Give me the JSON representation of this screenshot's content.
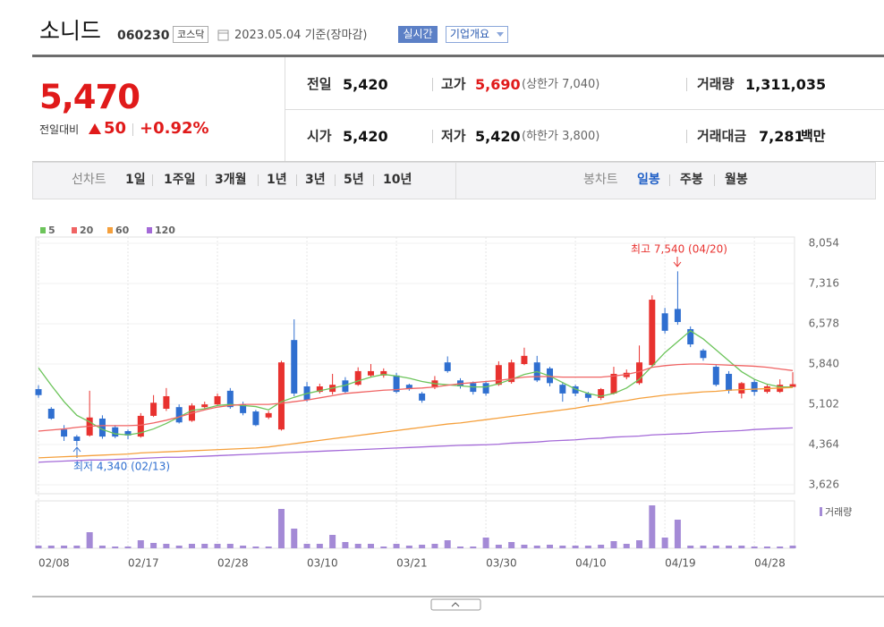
{
  "header": {
    "title": "소니드",
    "code": "060230",
    "market": "코스닥",
    "date": "2023.05.04 기준(장마감)",
    "buttons": [
      "실시간",
      "기업개요"
    ]
  },
  "price": {
    "current": "5,470",
    "change_label": "전일대비",
    "change": "50",
    "rate": "+0.92%"
  },
  "info": {
    "items": [
      {
        "label": "전일",
        "value": "5,420"
      },
      {
        "label": "고가",
        "value": "5,690",
        "note": "(상한가 7,040)"
      },
      {
        "label": "거래량",
        "value": "1,311,035"
      },
      {
        "label": "시가",
        "value": "5,420"
      },
      {
        "label": "저가",
        "value": "5,420",
        "note": "(하한가 3,800)"
      },
      {
        "label": "거래대금",
        "value": "7,281",
        "note": "백만"
      }
    ]
  },
  "tabs": {
    "line_label": "선차트",
    "periods": [
      "1일",
      "1주일",
      "3개월",
      "1년",
      "3년",
      "5년",
      "10년"
    ],
    "candle_label": "봉차트",
    "candle_periods": [
      "일봉",
      "주봉",
      "월봉"
    ]
  },
  "chart_data": [
    {
      "type": "candlestick",
      "categories": [
        "02/08",
        null,
        null,
        null,
        null,
        null,
        null,
        "02/17",
        null,
        null,
        null,
        null,
        null,
        null,
        "02/28",
        null,
        null,
        null,
        null,
        null,
        null,
        "03/10",
        null,
        null,
        null,
        null,
        null,
        null,
        "03/21",
        null,
        null,
        null,
        null,
        null,
        null,
        "03/30",
        null,
        null,
        null,
        null,
        null,
        null,
        "04/10",
        null,
        null,
        null,
        null,
        null,
        null,
        "04/19",
        null,
        null,
        null,
        null,
        null,
        null,
        "04/28",
        null,
        null,
        null
      ],
      "open": [
        5380,
        5020,
        4640,
        4510,
        4530,
        4840,
        4680,
        4610,
        4510,
        4890,
        5020,
        5050,
        4800,
        5050,
        5100,
        5350,
        5100,
        4970,
        4860,
        4640,
        6280,
        5430,
        5330,
        5330,
        5540,
        5460,
        5630,
        5630,
        5630,
        5460,
        5300,
        5410,
        5870,
        5540,
        5490,
        5490,
        5460,
        5510,
        5840,
        5870,
        5760,
        5460,
        5430,
        5300,
        5220,
        5300,
        5600,
        5490,
        5820,
        6770,
        6850,
        6480,
        6090,
        5790,
        5660,
        5300,
        5510,
        5330,
        5330,
        5420
      ],
      "high": [
        5450,
        5050,
        4720,
        4540,
        5350,
        4900,
        4720,
        4640,
        4940,
        5270,
        5400,
        5100,
        5120,
        5150,
        5300,
        5400,
        5150,
        5000,
        4980,
        5900,
        6660,
        5510,
        5480,
        5660,
        5600,
        5780,
        5840,
        5760,
        5680,
        5480,
        5330,
        5620,
        5980,
        5580,
        5520,
        5530,
        5890,
        5920,
        6140,
        5990,
        5790,
        5510,
        5460,
        5330,
        5400,
        5790,
        5740,
        6180,
        7100,
        6870,
        7540,
        6530,
        6120,
        5820,
        5710,
        5510,
        5560,
        5460,
        5560,
        5690
      ],
      "low": [
        5220,
        4820,
        4430,
        4340,
        4510,
        4470,
        4480,
        4460,
        4490,
        4870,
        4980,
        4750,
        4780,
        5020,
        5080,
        5020,
        4900,
        4700,
        4830,
        4620,
        5250,
        5150,
        5300,
        5280,
        5300,
        5440,
        5600,
        5590,
        5300,
        5350,
        5130,
        5380,
        5680,
        5390,
        5280,
        5260,
        5440,
        5480,
        5820,
        5510,
        5430,
        5150,
        5250,
        5150,
        5180,
        5280,
        5560,
        5460,
        5790,
        6400,
        6560,
        6150,
        5900,
        5430,
        5300,
        5210,
        5260,
        5300,
        5310,
        5420
      ],
      "close": [
        5270,
        4840,
        4510,
        4430,
        4860,
        4510,
        4510,
        4530,
        4890,
        5130,
        5250,
        4770,
        5080,
        5100,
        5250,
        5050,
        4940,
        4720,
        4940,
        5870,
        5300,
        5180,
        5430,
        5460,
        5330,
        5710,
        5710,
        5710,
        5330,
        5380,
        5170,
        5540,
        5710,
        5430,
        5330,
        5300,
        5820,
        5870,
        5990,
        5540,
        5490,
        5300,
        5300,
        5220,
        5380,
        5660,
        5680,
        5870,
        7020,
        6450,
        6610,
        6200,
        5950,
        5460,
        5350,
        5490,
        5330,
        5430,
        5460,
        5470
      ],
      "up_color": "#e8322f",
      "down_color": "#2f6fd0",
      "moving_averages": [
        {
          "name": "5",
          "color": "#6cc45a",
          "values": [
            5770,
            5450,
            5150,
            4900,
            4780,
            4640,
            4560,
            4540,
            4580,
            4650,
            4750,
            4870,
            4990,
            5020,
            5080,
            5100,
            5080,
            5060,
            5000,
            5150,
            5230,
            5300,
            5350,
            5400,
            5450,
            5530,
            5600,
            5650,
            5620,
            5580,
            5520,
            5480,
            5460,
            5440,
            5420,
            5420,
            5480,
            5560,
            5650,
            5700,
            5620,
            5500,
            5380,
            5300,
            5250,
            5300,
            5400,
            5560,
            5800,
            6050,
            6250,
            6450,
            6300,
            6100,
            5900,
            5700,
            5560,
            5470,
            5420,
            5420
          ]
        },
        {
          "name": "20",
          "color": "#f06464",
          "values": [
            4610,
            4630,
            4650,
            4680,
            4700,
            4710,
            4710,
            4710,
            4720,
            4760,
            4810,
            4870,
            4940,
            5000,
            5050,
            5080,
            5100,
            5100,
            5100,
            5120,
            5150,
            5180,
            5220,
            5260,
            5300,
            5320,
            5340,
            5360,
            5370,
            5390,
            5400,
            5420,
            5450,
            5480,
            5500,
            5520,
            5540,
            5570,
            5600,
            5610,
            5610,
            5600,
            5600,
            5600,
            5600,
            5620,
            5650,
            5700,
            5780,
            5810,
            5830,
            5840,
            5840,
            5830,
            5820,
            5810,
            5800,
            5780,
            5750,
            5720
          ]
        },
        {
          "name": "60",
          "color": "#f5a03c",
          "values": [
            4120,
            4130,
            4140,
            4150,
            4160,
            4170,
            4180,
            4190,
            4210,
            4220,
            4230,
            4240,
            4250,
            4260,
            4270,
            4280,
            4290,
            4300,
            4320,
            4350,
            4380,
            4410,
            4440,
            4470,
            4500,
            4530,
            4560,
            4590,
            4620,
            4650,
            4680,
            4710,
            4740,
            4760,
            4790,
            4820,
            4850,
            4880,
            4910,
            4940,
            4970,
            5000,
            5030,
            5070,
            5100,
            5140,
            5170,
            5210,
            5240,
            5270,
            5290,
            5310,
            5330,
            5340,
            5360,
            5370,
            5380,
            5390,
            5400,
            5410
          ]
        },
        {
          "name": "120",
          "color": "#a46ad8",
          "values": [
            4040,
            4050,
            4060,
            4070,
            4080,
            4080,
            4090,
            4100,
            4110,
            4120,
            4130,
            4130,
            4140,
            4150,
            4160,
            4170,
            4180,
            4190,
            4200,
            4210,
            4220,
            4230,
            4240,
            4250,
            4260,
            4270,
            4280,
            4290,
            4300,
            4310,
            4320,
            4330,
            4340,
            4350,
            4355,
            4360,
            4370,
            4390,
            4400,
            4410,
            4430,
            4440,
            4450,
            4470,
            4480,
            4500,
            4510,
            4520,
            4540,
            4550,
            4560,
            4570,
            4590,
            4600,
            4610,
            4620,
            4640,
            4650,
            4660,
            4670
          ]
        }
      ],
      "ylim": [
        3462,
        8218
      ],
      "yticks": [
        {
          "value": 8054,
          "label": "8,054"
        },
        {
          "value": 7316,
          "label": "7,316"
        },
        {
          "value": 6578,
          "label": "6,578"
        },
        {
          "value": 5840,
          "label": "5,840"
        },
        {
          "value": 5102,
          "label": "5,102"
        },
        {
          "value": 4364,
          "label": "4,364"
        },
        {
          "value": 3626,
          "label": "3,626"
        }
      ],
      "annotations": [
        "최고 7,540 (04/20)",
        "최저 4,340 (02/13)"
      ]
    },
    {
      "type": "bar",
      "series": [
        {
          "name": "거래량",
          "color": "#a48ad6",
          "values": [
            1320000,
            1320000,
            1320000,
            1320000,
            7920000,
            1320000,
            880000,
            880000,
            3960000,
            2640000,
            2200000,
            1320000,
            2200000,
            2200000,
            2200000,
            2200000,
            1320000,
            880000,
            880000,
            19360000,
            9680000,
            2200000,
            2200000,
            6600000,
            3080000,
            2200000,
            2200000,
            880000,
            2200000,
            1320000,
            1760000,
            2200000,
            3960000,
            880000,
            880000,
            5280000,
            1760000,
            3080000,
            1760000,
            1320000,
            1760000,
            1320000,
            1320000,
            1320000,
            1760000,
            3520000,
            2200000,
            3960000,
            21120000,
            5280000,
            14080000,
            1320000,
            1320000,
            1320000,
            1320000,
            1320000,
            880000,
            880000,
            880000,
            1311035
          ]
        }
      ],
      "ylim": [
        0,
        22000000
      ]
    }
  ]
}
